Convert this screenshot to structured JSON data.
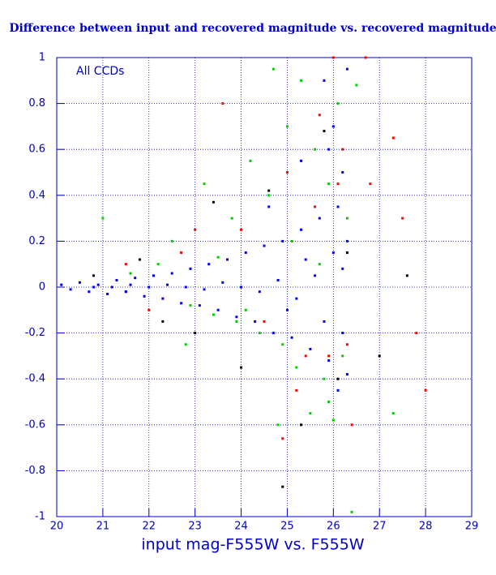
{
  "chart_data": {
    "type": "scatter",
    "title": "Difference between input and recovered magnitude vs. recovered magnitude",
    "x_label": "input mag-F555W vs. F555W",
    "annotation": "All CCDs",
    "xlim": [
      20,
      29
    ],
    "ylim": [
      -1,
      1
    ],
    "xticks": [
      20,
      21,
      22,
      23,
      24,
      25,
      26,
      27,
      28,
      29
    ],
    "yticks": [
      -1,
      -0.8,
      -0.6,
      -0.4,
      -0.2,
      0,
      0.2,
      0.4,
      0.6,
      0.8,
      1
    ],
    "grid": true,
    "series": [
      {
        "color": "#000000",
        "x": [
          20.8,
          21.8,
          22.3,
          23.0,
          23.4,
          24.0,
          24.6,
          24.9,
          25.3,
          25.8,
          26.1,
          26.3,
          27.0,
          27.6,
          21.5
        ],
        "y": [
          0.05,
          0.12,
          -0.15,
          -0.2,
          0.37,
          -0.35,
          0.42,
          -0.87,
          -0.6,
          0.68,
          -0.4,
          0.15,
          -0.3,
          0.05,
          -0.02
        ]
      },
      {
        "color": "#ff0000",
        "x": [
          21.5,
          22.7,
          23.6,
          24.0,
          24.5,
          25.0,
          25.4,
          25.7,
          25.9,
          26.1,
          26.3,
          26.2,
          26.0,
          25.6,
          25.2,
          24.9,
          26.4,
          26.8,
          27.3,
          28.0,
          27.8,
          27.5,
          22.0,
          23.0,
          26.7
        ],
        "y": [
          0.1,
          0.15,
          0.8,
          0.25,
          -0.15,
          0.5,
          -0.3,
          0.75,
          -0.3,
          0.45,
          -0.25,
          0.6,
          1.0,
          0.35,
          -0.45,
          -0.66,
          -0.6,
          0.45,
          0.65,
          -0.45,
          -0.2,
          0.3,
          -0.1,
          0.25,
          1.0
        ]
      },
      {
        "color": "#00cc00",
        "x": [
          21.0,
          22.5,
          23.2,
          23.8,
          24.2,
          24.6,
          25.0,
          25.3,
          25.6,
          25.9,
          26.1,
          26.3,
          26.2,
          25.8,
          25.5,
          25.2,
          24.9,
          24.4,
          23.9,
          23.4,
          22.9,
          22.2,
          21.6,
          26.0,
          25.9,
          24.7,
          24.8,
          26.4,
          25.1,
          25.7,
          26.5,
          22.8,
          27.3,
          23.5,
          24.1
        ],
        "y": [
          0.3,
          0.2,
          0.45,
          0.3,
          0.55,
          0.4,
          0.7,
          0.9,
          0.6,
          0.45,
          0.8,
          0.3,
          -0.3,
          -0.4,
          -0.55,
          -0.35,
          -0.25,
          -0.2,
          -0.15,
          -0.12,
          -0.08,
          0.1,
          0.06,
          -0.58,
          -0.5,
          0.95,
          -0.6,
          -0.98,
          0.2,
          0.1,
          0.88,
          -0.25,
          -0.55,
          0.13,
          -0.1
        ]
      },
      {
        "color": "#0000ff",
        "x": [
          20.1,
          20.3,
          20.5,
          20.7,
          20.9,
          21.1,
          21.3,
          21.5,
          21.7,
          21.9,
          22.1,
          22.3,
          22.5,
          22.7,
          22.9,
          23.1,
          23.3,
          23.5,
          23.7,
          23.9,
          24.1,
          24.3,
          24.5,
          24.7,
          24.9,
          25.1,
          25.3,
          25.5,
          25.7,
          25.9,
          26.1,
          26.3,
          26.2,
          26.0,
          25.8,
          26.3,
          26.2,
          25.6,
          25.2,
          24.8,
          24.4,
          24.0,
          23.6,
          23.2,
          22.8,
          22.4,
          22.0,
          21.6,
          21.2,
          20.8,
          25.4,
          25.0,
          26.1,
          25.9,
          26.3,
          25.3,
          24.6,
          26.2,
          25.8,
          26.0
        ],
        "y": [
          0.01,
          -0.01,
          0.02,
          -0.02,
          0.01,
          -0.03,
          0.03,
          -0.02,
          0.04,
          -0.04,
          0.05,
          -0.05,
          0.06,
          -0.07,
          0.08,
          -0.08,
          0.1,
          -0.1,
          0.12,
          -0.13,
          0.15,
          -0.15,
          0.18,
          -0.2,
          0.2,
          -0.22,
          0.25,
          -0.27,
          0.3,
          -0.32,
          0.35,
          -0.38,
          0.5,
          0.7,
          0.9,
          0.2,
          -0.2,
          0.05,
          -0.05,
          0.03,
          -0.02,
          0,
          0.02,
          -0.01,
          0,
          0.01,
          0,
          0.01,
          0,
          0,
          0.12,
          -0.1,
          -0.45,
          0.6,
          0.95,
          0.55,
          0.35,
          0.08,
          -0.15,
          0.15
        ]
      }
    ]
  }
}
